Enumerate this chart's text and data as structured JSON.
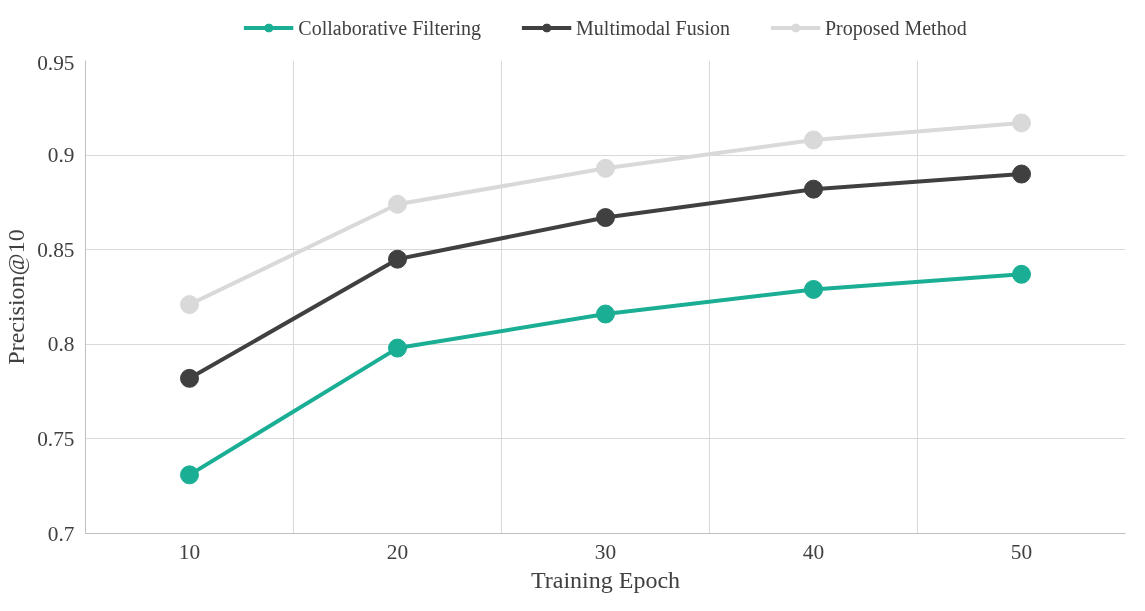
{
  "chart_data": {
    "type": "line",
    "xlabel": "Training Epoch",
    "ylabel": "Precision@10",
    "categories": [
      "10",
      "20",
      "30",
      "40",
      "50"
    ],
    "series": [
      {
        "name": "Collaborative Filtering",
        "color": "#1aae94",
        "values": [
          0.731,
          0.798,
          0.816,
          0.829,
          0.837
        ]
      },
      {
        "name": "Multimodal Fusion",
        "color": "#404040",
        "values": [
          0.782,
          0.845,
          0.867,
          0.882,
          0.89
        ]
      },
      {
        "name": "Proposed Method",
        "color": "#d9d9d9",
        "values": [
          0.821,
          0.874,
          0.893,
          0.908,
          0.917
        ]
      }
    ],
    "ylim": [
      0.7,
      0.95
    ],
    "yticks": [
      0.7,
      0.75,
      0.8,
      0.85,
      0.9,
      0.95
    ],
    "grid": true,
    "legend": "top",
    "marker": "circle",
    "line_style": "solid"
  }
}
